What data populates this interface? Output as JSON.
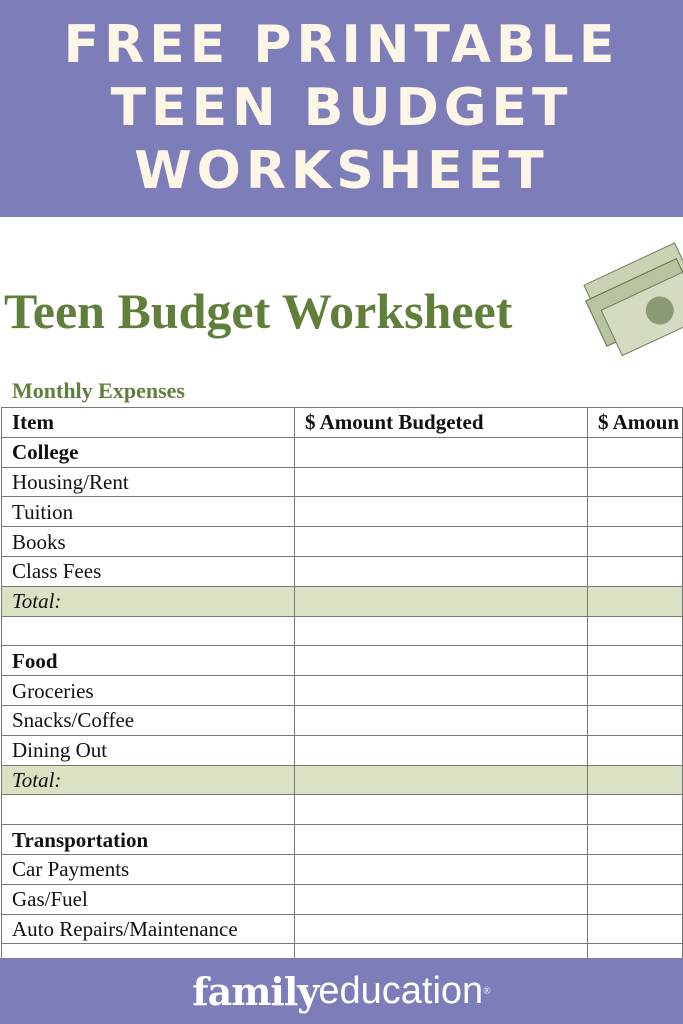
{
  "banner": {
    "lines": [
      "FREE PRINTABLE",
      "TEEN BUDGET",
      "WORKSHEET"
    ]
  },
  "worksheet": {
    "title": "Teen Budget Worksheet",
    "section": "Monthly Expenses",
    "columns": [
      "Item",
      "$ Amount Budgeted",
      "$ Amoun"
    ],
    "rows": [
      {
        "label": "College",
        "type": "cat"
      },
      {
        "label": "Housing/Rent",
        "type": "item"
      },
      {
        "label": "Tuition",
        "type": "item"
      },
      {
        "label": "Books",
        "type": "item"
      },
      {
        "label": "Class Fees",
        "type": "item"
      },
      {
        "label": "Total:",
        "type": "total"
      },
      {
        "label": "",
        "type": "blank"
      },
      {
        "label": "Food",
        "type": "cat"
      },
      {
        "label": "Groceries",
        "type": "item"
      },
      {
        "label": "Snacks/Coffee",
        "type": "item"
      },
      {
        "label": "Dining Out",
        "type": "item"
      },
      {
        "label": "Total:",
        "type": "total"
      },
      {
        "label": "",
        "type": "blank"
      },
      {
        "label": "Transportation",
        "type": "cat"
      },
      {
        "label": "Car Payments",
        "type": "item"
      },
      {
        "label": "Gas/Fuel",
        "type": "item"
      },
      {
        "label": "Auto Repairs/Maintenance",
        "type": "item"
      },
      {
        "label": "",
        "type": "blank"
      }
    ]
  },
  "footer": {
    "brand_bold": "family",
    "brand_light": "education",
    "mark": "®"
  },
  "colors": {
    "banner": "#7d7dba",
    "title_green": "#5f7f3b",
    "total_row": "#d9e2c3"
  }
}
